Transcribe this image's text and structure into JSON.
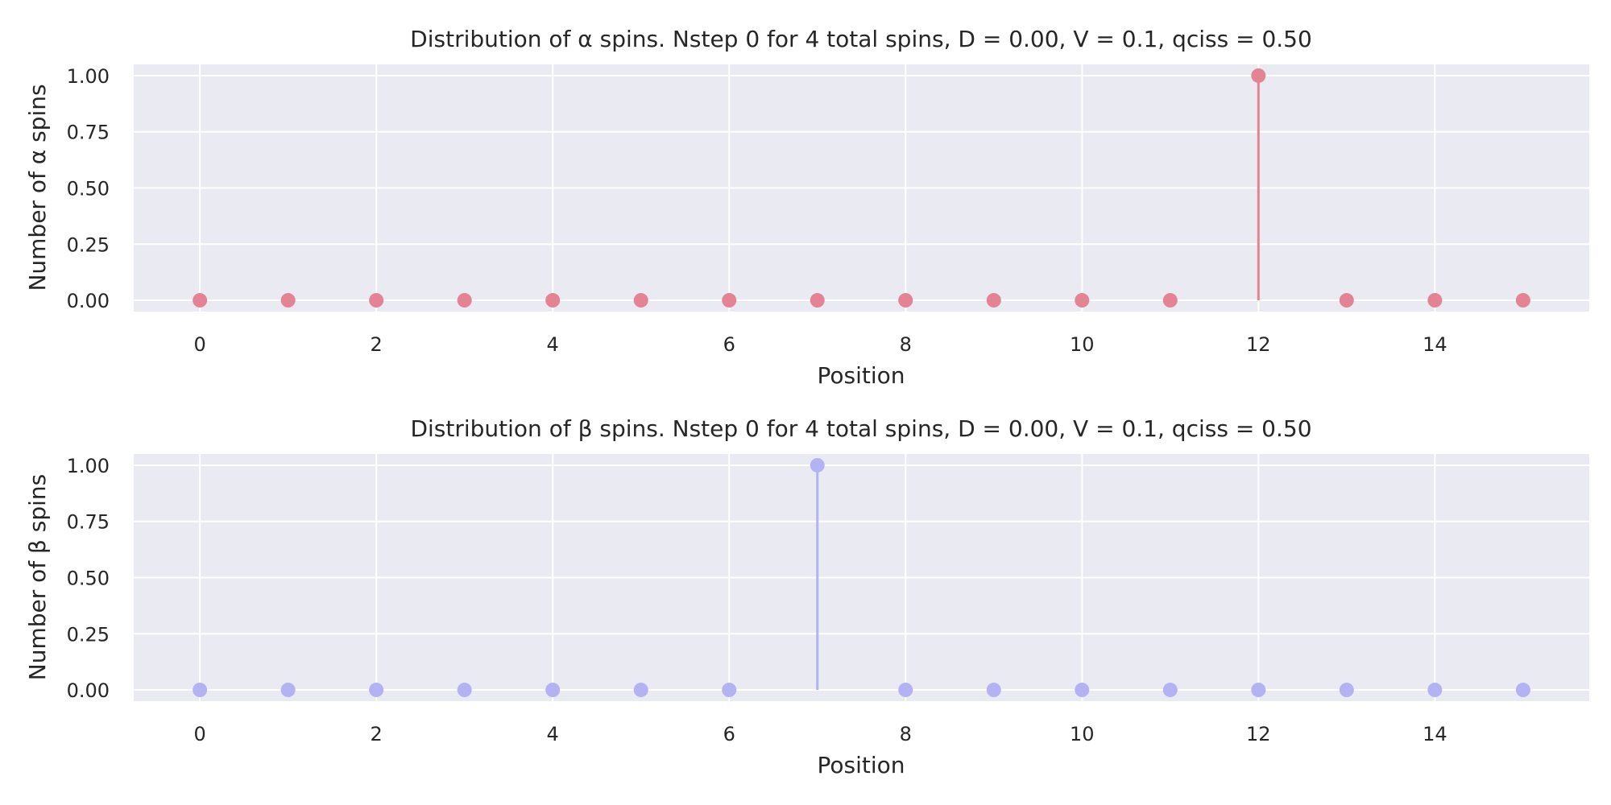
{
  "chart_data": [
    {
      "type": "stem",
      "title": "Distribution of α spins. Nstep 0 for 4 total spins, D = 0.00, V = 0.1, qciss = 0.50",
      "xlabel": "Position",
      "ylabel": "Number of α spins",
      "x": [
        0,
        1,
        2,
        3,
        4,
        5,
        6,
        7,
        8,
        9,
        10,
        11,
        12,
        13,
        14,
        15
      ],
      "values": [
        0,
        0,
        0,
        0,
        0,
        0,
        0,
        0,
        0,
        0,
        0,
        0,
        1,
        0,
        0,
        0
      ],
      "color": "#e48394",
      "xlim": [
        -0.75,
        15.75
      ],
      "ylim": [
        -0.05,
        1.05
      ],
      "xticks": [
        0,
        2,
        4,
        6,
        8,
        10,
        12,
        14
      ],
      "xtick_labels": [
        "0",
        "2",
        "4",
        "6",
        "8",
        "10",
        "12",
        "14"
      ],
      "yticks": [
        0,
        0.25,
        0.5,
        0.75,
        1.0
      ],
      "ytick_labels": [
        "0.00",
        "0.25",
        "0.50",
        "0.75",
        "1.00"
      ],
      "grid": true,
      "background": "#eaeaf2"
    },
    {
      "type": "stem",
      "title": "Distribution of β spins. Nstep 0 for 4 total spins, D = 0.00, V = 0.1, qciss = 0.50",
      "xlabel": "Position",
      "ylabel": "Number of β spins",
      "x": [
        0,
        1,
        2,
        3,
        4,
        5,
        6,
        7,
        8,
        9,
        10,
        11,
        12,
        13,
        14,
        15
      ],
      "values": [
        0,
        0,
        0,
        0,
        0,
        0,
        0,
        1,
        0,
        0,
        0,
        0,
        0,
        0,
        0,
        0
      ],
      "color": "#b3b3f3",
      "xlim": [
        -0.75,
        15.75
      ],
      "ylim": [
        -0.05,
        1.05
      ],
      "xticks": [
        0,
        2,
        4,
        6,
        8,
        10,
        12,
        14
      ],
      "xtick_labels": [
        "0",
        "2",
        "4",
        "6",
        "8",
        "10",
        "12",
        "14"
      ],
      "yticks": [
        0,
        0.25,
        0.5,
        0.75,
        1.0
      ],
      "ytick_labels": [
        "0.00",
        "0.25",
        "0.50",
        "0.75",
        "1.00"
      ],
      "grid": true,
      "background": "#eaeaf2"
    }
  ]
}
